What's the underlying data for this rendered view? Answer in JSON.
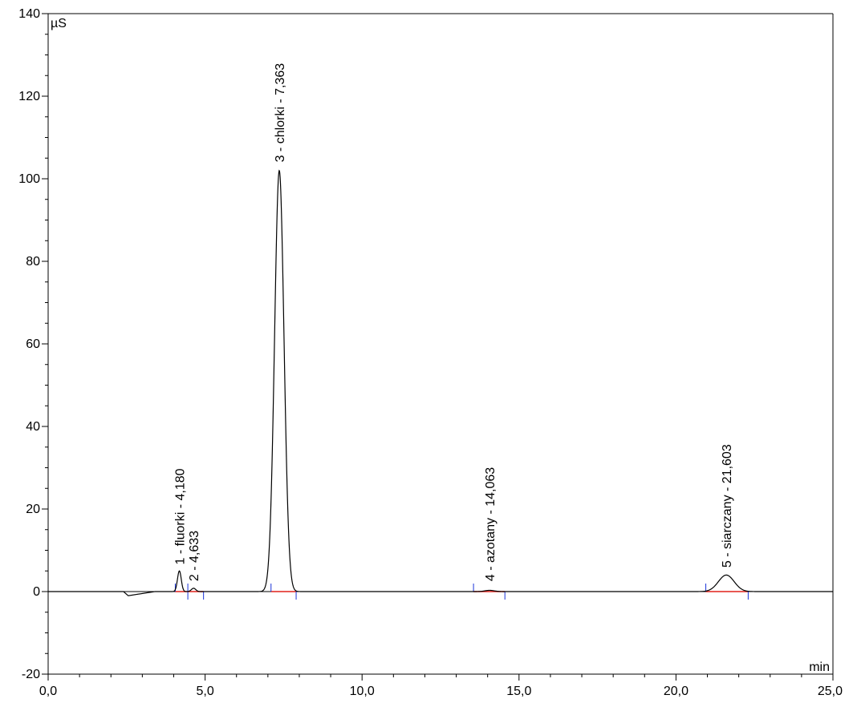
{
  "chart_data": {
    "type": "line",
    "title": "",
    "ylabel": "µS",
    "xlabel": "min",
    "xlim": [
      0,
      25
    ],
    "ylim": [
      -20,
      140
    ],
    "x_ticks": [
      {
        "value": 0,
        "label": "0,0"
      },
      {
        "value": 5,
        "label": "5,0"
      },
      {
        "value": 10,
        "label": "10,0"
      },
      {
        "value": 15,
        "label": "15,0"
      },
      {
        "value": 20,
        "label": "20,0"
      },
      {
        "value": 25,
        "label": "25,0"
      }
    ],
    "y_ticks": [
      {
        "value": -20,
        "label": "-20"
      },
      {
        "value": 0,
        "label": "0"
      },
      {
        "value": 20,
        "label": "20"
      },
      {
        "value": 40,
        "label": "40"
      },
      {
        "value": 60,
        "label": "60"
      },
      {
        "value": 80,
        "label": "80"
      },
      {
        "value": 100,
        "label": "100"
      },
      {
        "value": 120,
        "label": "120"
      },
      {
        "value": 140,
        "label": "140"
      }
    ],
    "grid": false,
    "colors": {
      "trace": "#000000",
      "baseline": "#e0201a",
      "integration_marks": "#1a33d9",
      "axes": "#000000"
    },
    "baseline_dip": {
      "x_start": 2.4,
      "x_min": 2.55,
      "y_min": -1.0,
      "x_end": 3.4
    },
    "peaks": [
      {
        "label": "1 - fluorki - 4,180",
        "rt": 4.18,
        "height": 5.0,
        "sigma": 0.06,
        "start": 4.05,
        "end": 4.45,
        "label_y": 6.5
      },
      {
        "label": "2 - 4,633",
        "rt": 4.633,
        "height": 0.8,
        "sigma": 0.07,
        "start": 4.45,
        "end": 4.95,
        "label_y": 2.5
      },
      {
        "label": "3 - chlorki - 7,363",
        "rt": 7.363,
        "height": 102,
        "sigma": 0.15,
        "start": 7.1,
        "end": 7.9,
        "label_y": 104
      },
      {
        "label": "4 - azotany - 14,063",
        "rt": 14.063,
        "height": 0.3,
        "sigma": 0.15,
        "start": 13.55,
        "end": 14.55,
        "label_y": 2.5
      },
      {
        "label": "5 - siarczany - 21,603",
        "rt": 21.603,
        "height": 4.0,
        "sigma": 0.25,
        "start": 20.95,
        "end": 22.3,
        "label_y": 5.8
      }
    ]
  }
}
